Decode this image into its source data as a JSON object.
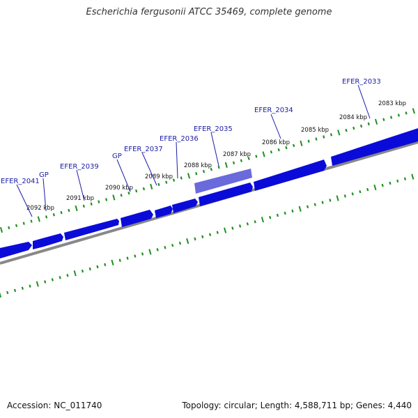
{
  "title": "Escherichia fergusonii ATCC 35469, complete genome",
  "footer": {
    "accession": "Accession: NC_011740",
    "summary": "Topology: circular; Length: 4,588,711 bp; Genes: 4,440"
  },
  "colors": {
    "gene_fill": "#0b0bd9",
    "gene_highlight": "#5a5ad8",
    "backbone": "#888888",
    "tick": "#1f8f1f",
    "gene_label": "#1a1aa6"
  },
  "kbp_labels": [
    "2083 kbp",
    "2084 kbp",
    "2085 kbp",
    "2086 kbp",
    "2087 kbp",
    "2088 kbp",
    "2089 kbp",
    "2090 kbp",
    "2091 kbp",
    "2092 kbp"
  ],
  "gene_labels": [
    "EFER_2033",
    "EFER_2034",
    "EFER_2035",
    "EFER_2036",
    "EFER_2037",
    "GP",
    "EFER_2039",
    "GP",
    "EFER_2041"
  ]
}
